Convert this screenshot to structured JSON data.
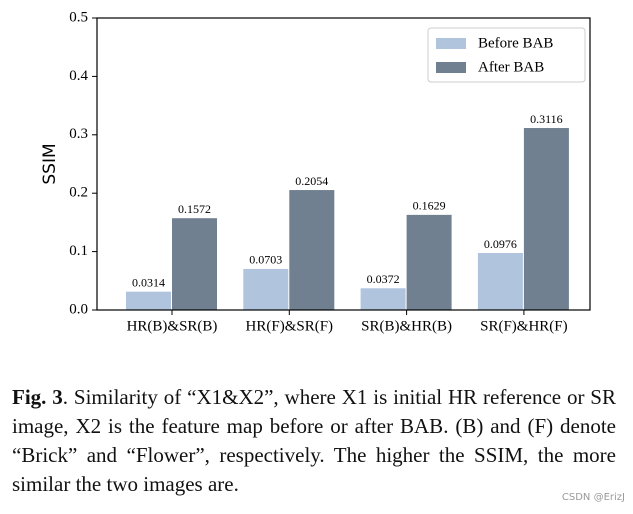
{
  "chart_data": {
    "type": "bar",
    "y_label": "SSIM",
    "categories": [
      "HR(B)&SR(B)",
      "HR(F)&SR(F)",
      "SR(B)&HR(B)",
      "SR(F)&HR(F)"
    ],
    "series": [
      {
        "name": "Before BAB",
        "color": "#b0c4de",
        "values": [
          0.0314,
          0.0703,
          0.0372,
          0.0976
        ]
      },
      {
        "name": "After BAB",
        "color": "#708090",
        "values": [
          0.1572,
          0.2054,
          0.1629,
          0.3116
        ]
      }
    ],
    "ylim": [
      0,
      0.5
    ],
    "yticks": [
      {
        "value": 0,
        "label": "0.0"
      },
      0.1,
      0.2,
      0.3,
      0.4,
      0.5
    ],
    "legend": "upper right",
    "grid": false
  },
  "caption": {
    "label": "Fig. 3",
    "text": ". Similarity of “X1&X2”, where X1 is initial HR reference or SR image, X2 is the feature map before or after BAB. (B) and (F) denote “Brick” and “Flower”, respectively. The higher the SSIM, the more similar the two images are."
  },
  "watermark": "CSDN @ErizJ"
}
